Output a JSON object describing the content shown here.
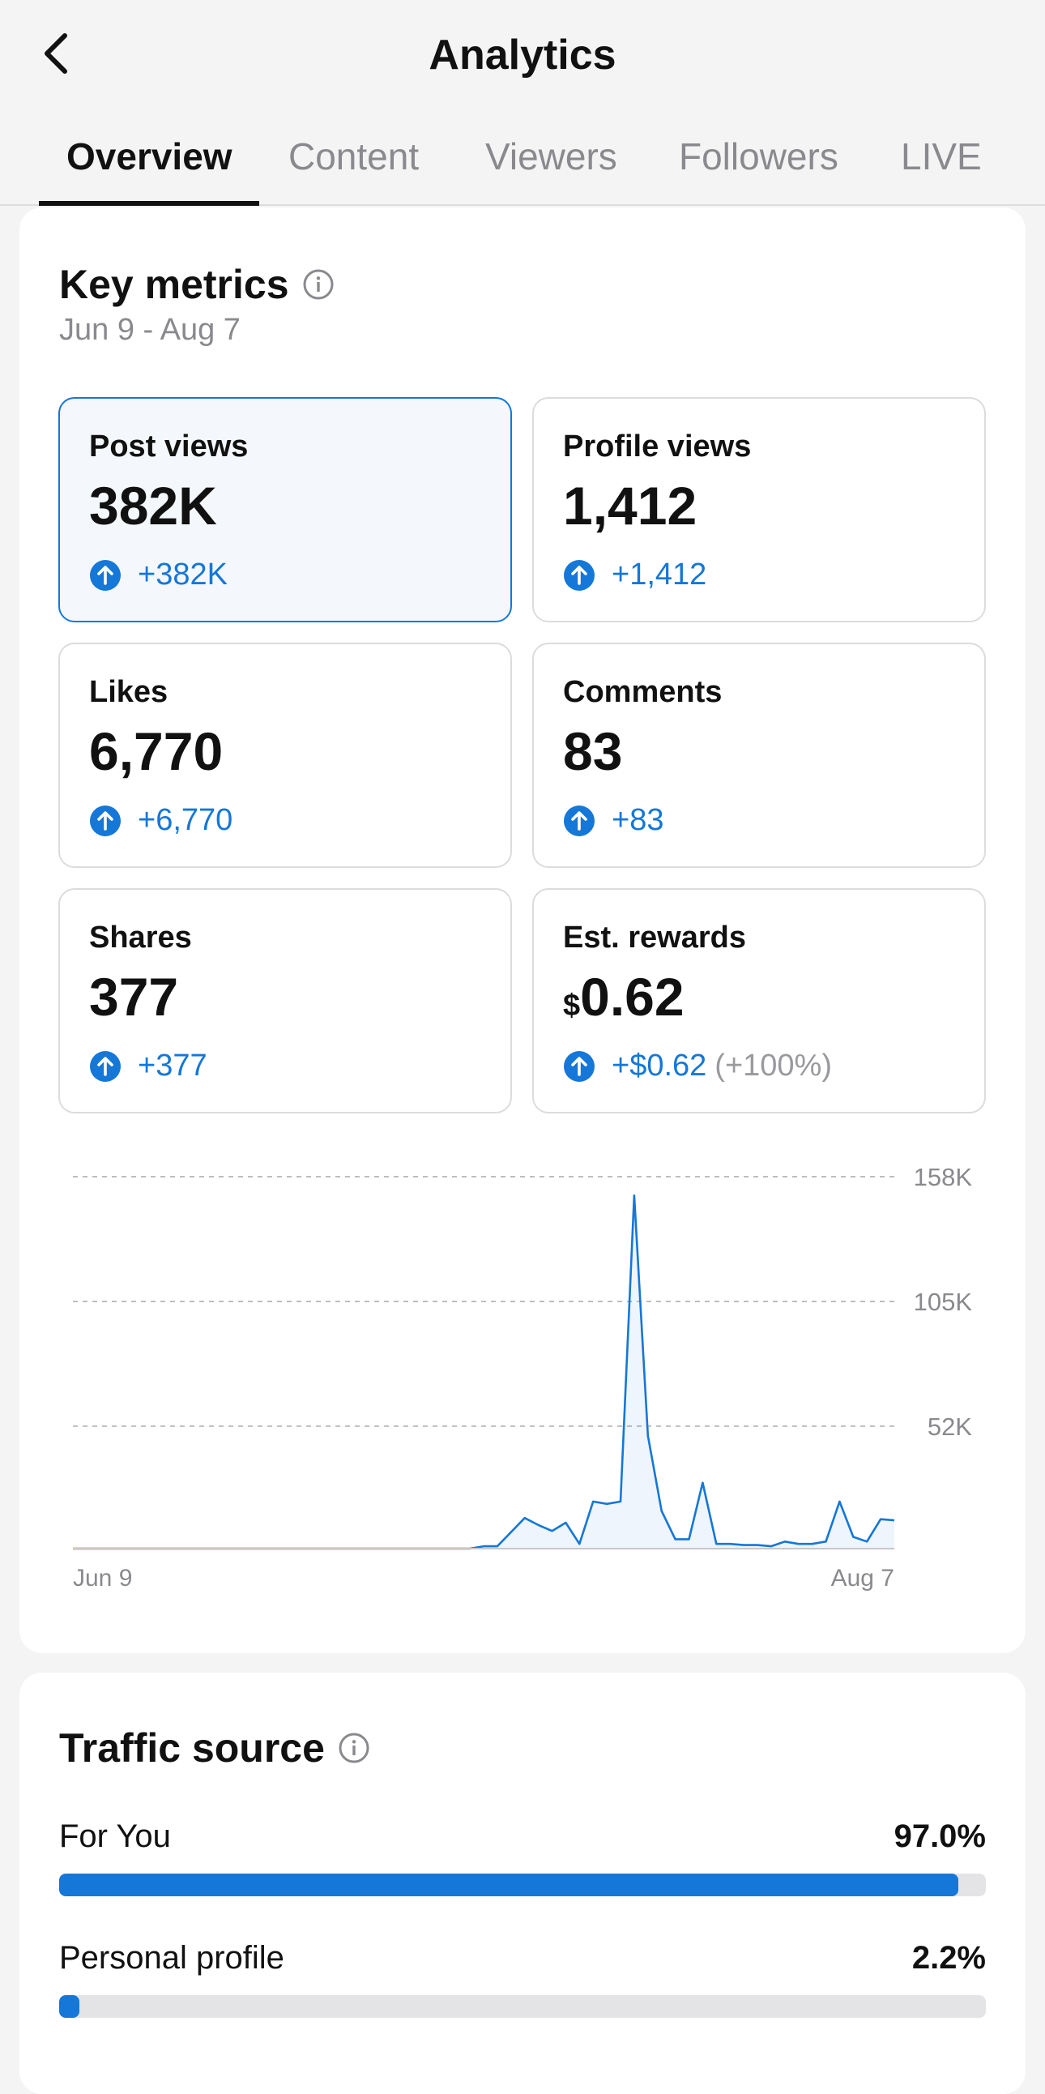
{
  "header": {
    "title": "Analytics"
  },
  "tabs": [
    {
      "label": "Overview",
      "active": true
    },
    {
      "label": "Content"
    },
    {
      "label": "Viewers"
    },
    {
      "label": "Followers"
    },
    {
      "label": "LIVE"
    }
  ],
  "key_metrics": {
    "title": "Key metrics",
    "date_range": "Jun 9 - Aug 7",
    "items": [
      {
        "label": "Post views",
        "value": "382K",
        "change": "+382K"
      },
      {
        "label": "Profile views",
        "value": "1,412",
        "change": "+1,412"
      },
      {
        "label": "Likes",
        "value": "6,770",
        "change": "+6,770"
      },
      {
        "label": "Comments",
        "value": "83",
        "change": "+83"
      },
      {
        "label": "Shares",
        "value": "377",
        "change": "+377"
      },
      {
        "label": "Est. rewards",
        "currency": "$",
        "value": "0.62",
        "change": "+$0.62",
        "change_pct": "(+100%)"
      }
    ]
  },
  "chart_data": {
    "type": "line",
    "series": [
      {
        "values": [
          0,
          0,
          0,
          0,
          0,
          0,
          0,
          0,
          0,
          0,
          0,
          0,
          0,
          0,
          0,
          0,
          0,
          0,
          0,
          0,
          0,
          0,
          0,
          0,
          0,
          0,
          0,
          0,
          0,
          0,
          1000,
          1000,
          7000,
          13000,
          10000,
          7500,
          11000,
          2000,
          20000,
          19000,
          20000,
          150000,
          48000,
          16000,
          4000,
          4000,
          28000,
          2000,
          2000,
          1500,
          1500,
          1000,
          3000,
          2000,
          2000,
          3000,
          20000,
          5000,
          3000,
          12500,
          12000
        ]
      }
    ],
    "x_start": "Jun 9",
    "x_end": "Aug 7",
    "y_ticks": [
      "158K",
      "105K",
      "52K"
    ],
    "ylim": [
      0,
      158000
    ],
    "color": "#1577d7",
    "grid": true
  },
  "traffic_source": {
    "title": "Traffic source",
    "items": [
      {
        "label": "For You",
        "pct_label": "97.0%",
        "pct": 97.0
      },
      {
        "label": "Personal profile",
        "pct_label": "2.2%",
        "pct": 2.2
      }
    ]
  }
}
